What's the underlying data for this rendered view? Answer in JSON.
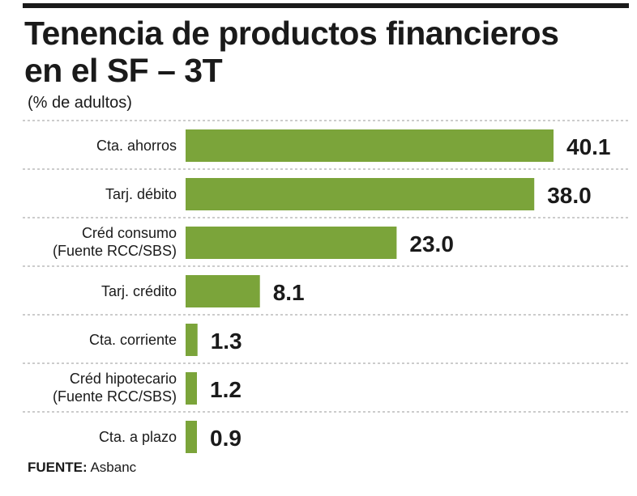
{
  "chart_data": {
    "type": "bar",
    "orientation": "horizontal",
    "title": "Tenencia de productos financieros en el SF – 3T",
    "title_lines": [
      "Tenencia de productos financieros",
      "en el SF – 3T"
    ],
    "subtitle": "(% de adultos)",
    "categories": [
      [
        "Cta. ahorros"
      ],
      [
        "Tarj. débito"
      ],
      [
        "Créd consumo",
        "(Fuente RCC/SBS)"
      ],
      [
        "Tarj. crédito"
      ],
      [
        "Cta. corriente"
      ],
      [
        "Créd hipotecario",
        "(Fuente RCC/SBS)"
      ],
      [
        "Cta. a plazo"
      ]
    ],
    "values": [
      40.1,
      38.0,
      23.0,
      8.1,
      1.3,
      1.2,
      0.9
    ],
    "value_labels": [
      "40.1",
      "38.0",
      "23.0",
      "8.1",
      "1.3",
      "1.2",
      "0.9"
    ],
    "xlim": [
      0,
      40.1
    ],
    "bar_color": "#7ba43a",
    "grid": "dashed separators between rows"
  },
  "source": {
    "label": "FUENTE:",
    "text": "Asbanc"
  }
}
